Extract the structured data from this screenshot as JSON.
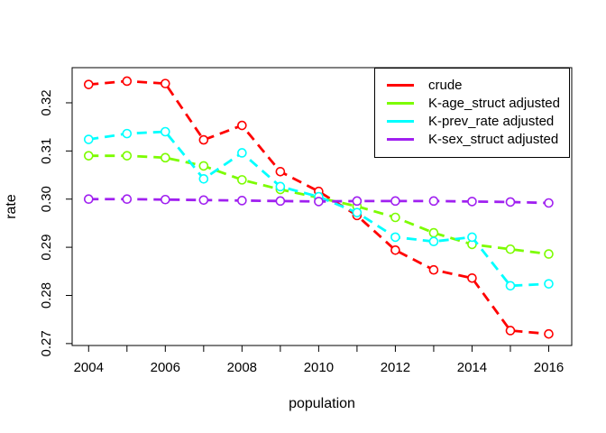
{
  "chart_data": {
    "type": "line",
    "line_style": "dashed",
    "marker": "open-circle",
    "grid": false,
    "legend_position": "topright",
    "xlabel": "population",
    "ylabel": "rate",
    "x": [
      2004,
      2005,
      2006,
      2007,
      2008,
      2009,
      2010,
      2011,
      2012,
      2013,
      2014,
      2015,
      2016
    ],
    "xticks_labeled": [
      2004,
      2006,
      2008,
      2010,
      2012,
      2014,
      2016
    ],
    "yticks": [
      0.27,
      0.28,
      0.29,
      0.3,
      0.31,
      0.32
    ],
    "xlim": [
      2003.57,
      2016.6
    ],
    "ylim": [
      0.2696,
      0.3273
    ],
    "series": [
      {
        "name": "crude",
        "color": "#FF0000",
        "values": [
          0.3238,
          0.3245,
          0.324,
          0.3123,
          0.3153,
          0.3057,
          0.3016,
          0.2966,
          0.2894,
          0.2853,
          0.2836,
          0.2727,
          0.272
        ]
      },
      {
        "name": "K-age_struct adjusted",
        "color": "#7CFC00",
        "values": [
          0.309,
          0.309,
          0.3086,
          0.3069,
          0.304,
          0.302,
          0.3003,
          0.2985,
          0.2962,
          0.293,
          0.2906,
          0.2896,
          0.2886
        ]
      },
      {
        "name": "K-prev_rate adjusted",
        "color": "#00FFFF",
        "values": [
          0.3124,
          0.3136,
          0.314,
          0.3042,
          0.3096,
          0.3026,
          0.3005,
          0.2972,
          0.2921,
          0.2912,
          0.2921,
          0.282,
          0.2824
        ]
      },
      {
        "name": "K-sex_struct adjusted",
        "color": "#A020F0",
        "values": [
          0.3,
          0.3,
          0.2999,
          0.2998,
          0.2997,
          0.2996,
          0.2995,
          0.2996,
          0.2996,
          0.2996,
          0.2995,
          0.2994,
          0.2992
        ]
      }
    ]
  }
}
